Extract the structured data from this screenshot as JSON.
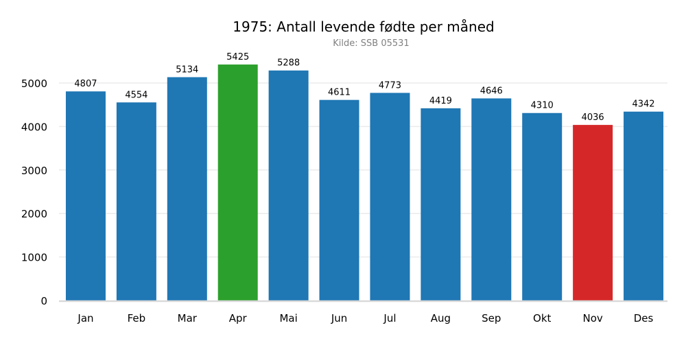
{
  "chart_data": {
    "type": "bar",
    "title": "1975: Antall levende fødte per måned",
    "subtitle": "Kilde: SSB 05531",
    "xlabel": "",
    "ylabel": "",
    "categories": [
      "Jan",
      "Feb",
      "Mar",
      "Apr",
      "Mai",
      "Jun",
      "Jul",
      "Aug",
      "Sep",
      "Okt",
      "Nov",
      "Des"
    ],
    "values": [
      4807,
      4554,
      5134,
      5425,
      5288,
      4611,
      4773,
      4419,
      4646,
      4310,
      4036,
      4342
    ],
    "ylim": [
      0,
      5700
    ],
    "yticks": [
      0,
      1000,
      2000,
      3000,
      4000,
      5000
    ],
    "grid": true,
    "colors": {
      "default": "#1f77b4",
      "max": "#2ca02c",
      "min": "#d62728",
      "grid": "#ebebeb",
      "axis": "#d9d9d9"
    }
  }
}
